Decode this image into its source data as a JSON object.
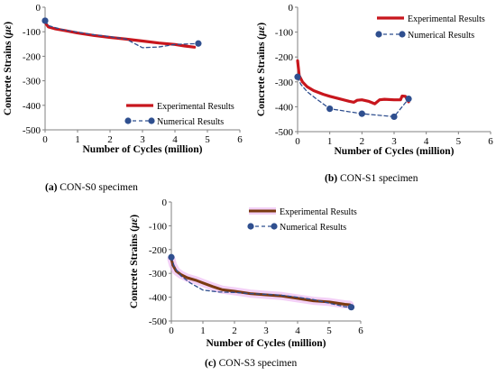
{
  "colors": {
    "experimental": "#c8161d",
    "experimental_s3": "#7a3a10",
    "experimental_s3_halo": "#e9a9ef",
    "numerical": "#2f4f8f",
    "axis": "#808080"
  },
  "chart_data": [
    {
      "type": "line",
      "caption_bold": "(a)",
      "caption_text": " CON-S0 specimen",
      "xlabel": "Number of Cycles (million)",
      "ylabel_main": "Concrete Strains (",
      "ylabel_unit": "με",
      "ylabel_end": ")",
      "xlim": [
        0,
        6
      ],
      "ylim": [
        -500,
        0
      ],
      "xticks": [
        "0",
        "1",
        "2",
        "3",
        "4",
        "5",
        "6"
      ],
      "yticks": [
        "0",
        "-100",
        "-200",
        "-300",
        "-400",
        "-500"
      ],
      "legend_position": "bottom-right",
      "series": [
        {
          "name": "Experimental Results",
          "style": "experimental",
          "x": [
            0,
            0.1,
            0.3,
            0.6,
            1.0,
            1.5,
            2.0,
            2.5,
            3.0,
            3.5,
            4.0,
            4.3,
            4.6
          ],
          "y": [
            -62,
            -80,
            -88,
            -95,
            -105,
            -115,
            -123,
            -130,
            -138,
            -146,
            -152,
            -158,
            -163
          ]
        },
        {
          "name": "Numerical Results",
          "style": "numerical",
          "x": [
            0,
            0.1,
            0.5,
            1.0,
            1.5,
            2.0,
            2.5,
            3.0,
            3.5,
            4.0,
            4.72
          ],
          "y": [
            -55,
            -75,
            -90,
            -102,
            -112,
            -120,
            -130,
            -165,
            -162,
            -152,
            -148
          ],
          "markers": [
            0,
            10
          ]
        }
      ]
    },
    {
      "type": "line",
      "caption_bold": "(b)",
      "caption_text": " CON-S1 specimen",
      "xlabel": "Number of Cycles (million)",
      "ylabel_main": "Concrete Strains (",
      "ylabel_unit": "με",
      "ylabel_end": ")",
      "xlim": [
        0,
        6
      ],
      "ylim": [
        -500,
        0
      ],
      "xticks": [
        "0",
        "1",
        "2",
        "3",
        "4",
        "5",
        "6"
      ],
      "yticks": [
        "0",
        "-100",
        "-200",
        "-300",
        "-400",
        "-500"
      ],
      "legend_position": "top-right",
      "series": [
        {
          "name": "Experimental Results",
          "style": "experimental",
          "x": [
            0,
            0.05,
            0.15,
            0.3,
            0.5,
            0.8,
            1.0,
            1.3,
            1.6,
            1.75,
            1.85,
            2.0,
            2.2,
            2.4,
            2.55,
            2.7,
            3.0,
            3.2,
            3.25,
            3.35,
            3.45
          ],
          "y": [
            -215,
            -275,
            -300,
            -320,
            -335,
            -350,
            -358,
            -368,
            -378,
            -382,
            -374,
            -372,
            -378,
            -388,
            -372,
            -370,
            -372,
            -372,
            -357,
            -358,
            -380
          ]
        },
        {
          "name": "Numerical Results",
          "style": "numerical",
          "x": [
            0,
            0.1,
            0.3,
            0.6,
            1.0,
            2.0,
            3.0,
            3.45
          ],
          "y": [
            -280,
            -310,
            -340,
            -370,
            -408,
            -428,
            -440,
            -368
          ],
          "markers": [
            0,
            4,
            5,
            6,
            7
          ]
        }
      ]
    },
    {
      "type": "line",
      "caption_bold": "(c)",
      "caption_text": " CON-S3 specimen",
      "xlabel": "Number of Cycles (million)",
      "ylabel_main": "Concrete Strains (",
      "ylabel_unit": "με",
      "ylabel_end": ")",
      "xlim": [
        0,
        6
      ],
      "ylim": [
        -500,
        0
      ],
      "xticks": [
        "0",
        "1",
        "2",
        "3",
        "4",
        "5",
        "6"
      ],
      "yticks": [
        "0",
        "-100",
        "-200",
        "-300",
        "-400",
        "-500"
      ],
      "legend_position": "top-right",
      "series": [
        {
          "name": "Experimental Results",
          "style": "experimental_s3",
          "x": [
            0,
            0.05,
            0.15,
            0.3,
            0.5,
            0.8,
            1.0,
            1.3,
            1.6,
            2.0,
            2.5,
            3.0,
            3.5,
            4.0,
            4.5,
            5.0,
            5.5,
            5.65
          ],
          "y": [
            -240,
            -265,
            -290,
            -305,
            -318,
            -330,
            -340,
            -355,
            -368,
            -375,
            -385,
            -390,
            -395,
            -405,
            -415,
            -420,
            -430,
            -432
          ]
        },
        {
          "name": "Numerical Results",
          "style": "numerical",
          "x": [
            0,
            0.1,
            0.3,
            0.6,
            1.0,
            1.5,
            2.0,
            2.5,
            3.0,
            3.5,
            4.0,
            4.5,
            5.0,
            5.5,
            5.7
          ],
          "y": [
            -232,
            -275,
            -310,
            -340,
            -370,
            -378,
            -380,
            -385,
            -388,
            -392,
            -400,
            -410,
            -425,
            -440,
            -442
          ],
          "markers": [
            0,
            14
          ]
        }
      ]
    }
  ]
}
